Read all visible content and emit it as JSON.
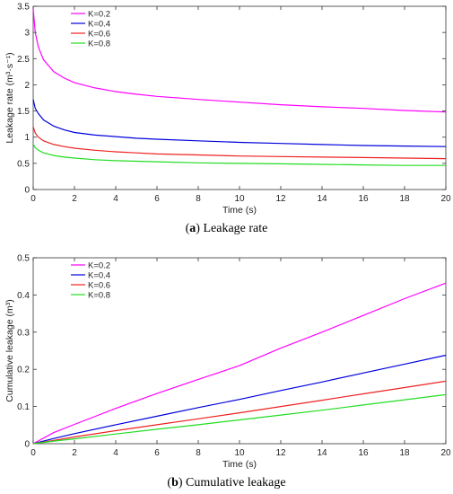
{
  "chart_data": [
    {
      "type": "line",
      "panel_letter": "a",
      "caption": "Leakage rate",
      "xlabel": "Time (s)",
      "ylabel": "Leakage rate (m³·s⁻¹)",
      "xlim": [
        0,
        20
      ],
      "ylim": [
        0,
        3.5
      ],
      "xticks": [
        0,
        2,
        4,
        6,
        8,
        10,
        12,
        14,
        16,
        18,
        20
      ],
      "yticks": [
        0,
        0.5,
        1,
        1.5,
        2,
        2.5,
        3,
        3.5
      ],
      "ytick_labels": [
        "0",
        "0.5",
        "1",
        "1.5",
        "2",
        "2.5",
        "3",
        "3.5"
      ],
      "legend_position": "top-left",
      "x": [
        0,
        0.1,
        0.25,
        0.5,
        1,
        1.5,
        2,
        3,
        4,
        5,
        6,
        8,
        10,
        12,
        14,
        16,
        18,
        20
      ],
      "series": [
        {
          "name": "K=0.2",
          "color": "#ff00ff",
          "values": [
            3.45,
            3.0,
            2.72,
            2.48,
            2.25,
            2.13,
            2.04,
            1.94,
            1.87,
            1.82,
            1.78,
            1.72,
            1.67,
            1.62,
            1.58,
            1.55,
            1.51,
            1.48
          ]
        },
        {
          "name": "K=0.4",
          "color": "#0000dd",
          "values": [
            1.72,
            1.55,
            1.45,
            1.33,
            1.21,
            1.14,
            1.09,
            1.04,
            1.01,
            0.98,
            0.96,
            0.93,
            0.9,
            0.88,
            0.86,
            0.84,
            0.83,
            0.82
          ]
        },
        {
          "name": "K=0.6",
          "color": "#ee2222",
          "values": [
            1.2,
            1.08,
            1.0,
            0.93,
            0.86,
            0.82,
            0.79,
            0.75,
            0.72,
            0.7,
            0.68,
            0.66,
            0.64,
            0.63,
            0.62,
            0.61,
            0.6,
            0.59
          ]
        },
        {
          "name": "K=0.8",
          "color": "#22dd22",
          "values": [
            0.87,
            0.8,
            0.75,
            0.7,
            0.65,
            0.62,
            0.6,
            0.57,
            0.55,
            0.54,
            0.53,
            0.51,
            0.5,
            0.49,
            0.48,
            0.47,
            0.46,
            0.46
          ]
        }
      ]
    },
    {
      "type": "line",
      "panel_letter": "b",
      "caption": "Cumulative leakage",
      "xlabel": "Time (s)",
      "ylabel": "Cumulative leakage (m³)",
      "xlim": [
        0,
        20
      ],
      "ylim": [
        0,
        0.5
      ],
      "xticks": [
        0,
        2,
        4,
        6,
        8,
        10,
        12,
        14,
        16,
        18,
        20
      ],
      "yticks": [
        0,
        0.1,
        0.2,
        0.3,
        0.4,
        0.5
      ],
      "ytick_labels": [
        "0",
        "0.1",
        "0.2",
        "0.3",
        "0.4",
        "0.5"
      ],
      "legend_position": "top-left",
      "x": [
        0,
        1,
        2,
        4,
        6,
        8,
        10,
        12,
        14,
        16,
        18,
        20
      ],
      "series": [
        {
          "name": "K=0.2",
          "color": "#ff00ff",
          "values": [
            0,
            0.03,
            0.052,
            0.095,
            0.135,
            0.173,
            0.21,
            0.257,
            0.3,
            0.345,
            0.39,
            0.432
          ]
        },
        {
          "name": "K=0.4",
          "color": "#0000dd",
          "values": [
            0,
            0.014,
            0.027,
            0.051,
            0.074,
            0.097,
            0.119,
            0.143,
            0.166,
            0.19,
            0.214,
            0.238
          ]
        },
        {
          "name": "K=0.6",
          "color": "#ee2222",
          "values": [
            0,
            0.009,
            0.018,
            0.035,
            0.051,
            0.067,
            0.083,
            0.1,
            0.117,
            0.134,
            0.151,
            0.168
          ]
        },
        {
          "name": "K=0.8",
          "color": "#22dd22",
          "values": [
            0,
            0.007,
            0.013,
            0.026,
            0.039,
            0.051,
            0.064,
            0.077,
            0.09,
            0.104,
            0.118,
            0.132
          ]
        }
      ]
    }
  ]
}
